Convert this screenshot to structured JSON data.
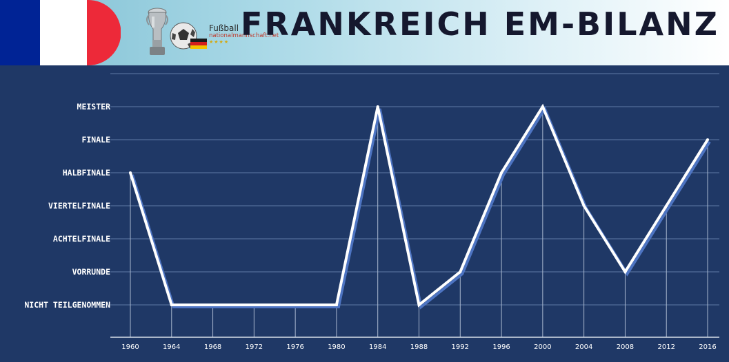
{
  "header": {
    "title": "FRANKREICH EM-BILANZ",
    "logo_line1": "Fußball",
    "logo_line2": "nationalmannschaft.net",
    "logo_stars": "★★★★",
    "flag_colors": [
      "#002395",
      "#ffffff",
      "#ed2939"
    ]
  },
  "chart_data": {
    "type": "line",
    "x": [
      "1960",
      "1964",
      "1968",
      "1972",
      "1976",
      "1980",
      "1984",
      "1988",
      "1992",
      "1996",
      "2000",
      "2004",
      "2008",
      "2012",
      "2016"
    ],
    "y_categories": [
      "NICHT TEILGENOMMEN",
      "VORRUNDE",
      "ACHTELFINALE",
      "VIERTELFINALE",
      "HALBFINALE",
      "FINALE",
      "MEISTER"
    ],
    "series": [
      {
        "values": [
          "HALBFINALE",
          "NICHT TEILGENOMMEN",
          "NICHT TEILGENOMMEN",
          "NICHT TEILGENOMMEN",
          "NICHT TEILGENOMMEN",
          "NICHT TEILGENOMMEN",
          "MEISTER",
          "NICHT TEILGENOMMEN",
          "VORRUNDE",
          "HALBFINALE",
          "MEISTER",
          "VIERTELFINALE",
          "VORRUNDE",
          "VIERTELFINALE",
          "FINALE"
        ]
      }
    ],
    "grid": true,
    "line_color": "#ffffff",
    "shadow_color": "#4d74c2",
    "background": "#1f3866"
  }
}
